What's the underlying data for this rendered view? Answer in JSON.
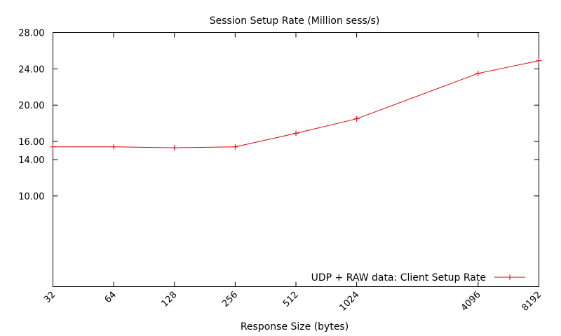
{
  "chart_data": {
    "type": "line",
    "title": "Session Setup Rate (Million sess/s)",
    "xlabel": "Response Size (bytes)",
    "ylabel": "",
    "x_scale": "log2",
    "xlim": [
      32,
      8192
    ],
    "ylim": [
      0,
      28
    ],
    "x_ticks": [
      "32",
      "64",
      "128",
      "256",
      "512",
      "1024",
      "4096",
      "8192"
    ],
    "y_ticks": [
      {
        "value": 10,
        "label": "10.00"
      },
      {
        "value": 14,
        "label": "14.00"
      },
      {
        "value": 16,
        "label": "16.00"
      },
      {
        "value": 20,
        "label": "20.00"
      },
      {
        "value": 24,
        "label": "24.00"
      },
      {
        "value": 28,
        "label": "28.00"
      }
    ],
    "grid": false,
    "legend_position": "bottom-right",
    "series": [
      {
        "name": "UDP + RAW data: Client Setup Rate",
        "color": "#e00000",
        "x": [
          32,
          64,
          128,
          256,
          512,
          1024,
          4096,
          8192
        ],
        "y": [
          15.4,
          15.4,
          15.3,
          15.4,
          16.9,
          18.5,
          23.5,
          24.9
        ]
      }
    ]
  }
}
